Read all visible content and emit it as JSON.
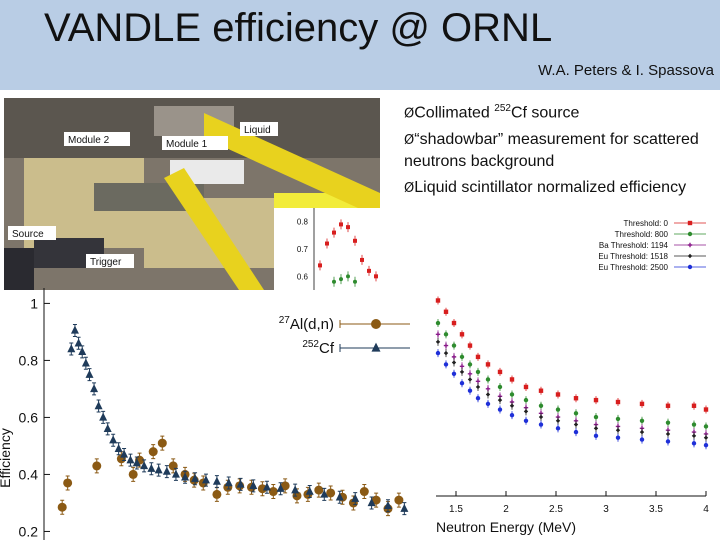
{
  "slide": {
    "title": "VANDLE efficiency @ ORNL",
    "authors": "W.A. Peters & I. Spassova",
    "bullets": [
      {
        "pre": "Collimated ",
        "sup": "252",
        "post": "Cf source"
      },
      {
        "pre": "“shadowbar” measurement for scattered neutrons background",
        "sup": "",
        "post": ""
      },
      {
        "pre": "Liquid scintillator normalized efficiency",
        "sup": "",
        "post": ""
      }
    ],
    "bullet_marker": "Ø"
  },
  "photo": {
    "labels": {
      "module2": "Module 2",
      "module1": "Module 1",
      "liquid": "Liquid",
      "source": "Source",
      "trigger": "Trigger"
    },
    "colors": {
      "tape": "#e8d21e",
      "block": "#f2ec3a",
      "brick": "#cbbd8c",
      "wall": "#7d756a",
      "metal": "#34343a"
    }
  },
  "chart_data": [
    {
      "type": "scatter",
      "ylabel": "Efficiency",
      "ylim": [
        0.17,
        1.04
      ],
      "xlim": [
        0,
        4
      ],
      "y_ticks": [
        "1",
        "0.8",
        "0.6",
        "0.4",
        "0.2"
      ],
      "legend_position": "top-right",
      "grid": false,
      "series": [
        {
          "name": "27Al(d,n)",
          "name_sup": "27",
          "name_main": "Al(d,n)",
          "color": "#8b5a14",
          "marker": "circle",
          "x": [
            0.2,
            0.26,
            0.58,
            0.85,
            0.98,
            1.05,
            1.2,
            1.3,
            1.42,
            1.55,
            1.65,
            1.75,
            1.9,
            2.02,
            2.15,
            2.28,
            2.4,
            2.52,
            2.65,
            2.78,
            2.9,
            3.02,
            3.15,
            3.28,
            3.4,
            3.52,
            3.65,
            3.78,
            3.9
          ],
          "y": [
            0.285,
            0.37,
            0.43,
            0.455,
            0.4,
            0.45,
            0.48,
            0.51,
            0.43,
            0.4,
            0.38,
            0.37,
            0.33,
            0.355,
            0.36,
            0.355,
            0.35,
            0.34,
            0.36,
            0.325,
            0.33,
            0.345,
            0.335,
            0.32,
            0.3,
            0.34,
            0.31,
            0.28,
            0.31
          ]
        },
        {
          "name": "252Cf",
          "name_sup": "252",
          "name_main": "Cf",
          "color": "#1f3b5a",
          "marker": "triangle",
          "x": [
            0.3,
            0.34,
            0.38,
            0.42,
            0.46,
            0.5,
            0.55,
            0.6,
            0.65,
            0.7,
            0.76,
            0.82,
            0.88,
            0.95,
            1.02,
            1.1,
            1.18,
            1.26,
            1.35,
            1.45,
            1.55,
            1.66,
            1.78,
            1.9,
            2.03,
            2.16,
            2.3,
            2.45,
            2.6,
            2.76,
            2.92,
            3.08,
            3.25,
            3.42,
            3.6,
            3.78,
            3.96
          ],
          "y": [
            0.84,
            0.905,
            0.86,
            0.83,
            0.79,
            0.75,
            0.7,
            0.64,
            0.6,
            0.56,
            0.52,
            0.49,
            0.47,
            0.45,
            0.44,
            0.43,
            0.42,
            0.415,
            0.41,
            0.4,
            0.39,
            0.385,
            0.38,
            0.375,
            0.37,
            0.365,
            0.36,
            0.355,
            0.35,
            0.345,
            0.34,
            0.33,
            0.32,
            0.315,
            0.3,
            0.29,
            0.28
          ]
        }
      ]
    },
    {
      "type": "scatter",
      "xlabel": "Neutron Energy (MeV)",
      "xlim": [
        1.3,
        4.0
      ],
      "ylim": [
        0.1,
        0.85
      ],
      "x_ticks": [
        "1.5",
        "2",
        "2.5",
        "3",
        "3.5",
        "4"
      ],
      "legend_position": "top-right",
      "series": [
        {
          "name": "Threshold: 0",
          "color": "#d81e1e",
          "marker": "square",
          "x": [
            1.32,
            1.4,
            1.48,
            1.56,
            1.64,
            1.72,
            1.82,
            1.94,
            2.06,
            2.2,
            2.35,
            2.52,
            2.7,
            2.9,
            3.12,
            3.36,
            3.62,
            3.88,
            4.0
          ],
          "y": [
            0.62,
            0.59,
            0.56,
            0.53,
            0.5,
            0.47,
            0.45,
            0.43,
            0.41,
            0.39,
            0.38,
            0.37,
            0.36,
            0.355,
            0.35,
            0.345,
            0.34,
            0.34,
            0.33
          ]
        },
        {
          "name": "Threshold: 800",
          "color": "#2e8b2e",
          "marker": "circle",
          "x": [
            1.32,
            1.4,
            1.48,
            1.56,
            1.64,
            1.72,
            1.82,
            1.94,
            2.06,
            2.2,
            2.35,
            2.52,
            2.7,
            2.9,
            3.12,
            3.36,
            3.62,
            3.88,
            4.0
          ],
          "y": [
            0.56,
            0.53,
            0.5,
            0.47,
            0.45,
            0.43,
            0.41,
            0.39,
            0.37,
            0.355,
            0.34,
            0.33,
            0.32,
            0.31,
            0.305,
            0.3,
            0.295,
            0.29,
            0.285
          ]
        },
        {
          "name": "Threshold: 1194",
          "name_pre": "Ba",
          "color": "#8a1a8a",
          "marker": "plus",
          "x": [
            1.32,
            1.4,
            1.48,
            1.56,
            1.64,
            1.72,
            1.82,
            1.94,
            2.06,
            2.2,
            2.35,
            2.52,
            2.7,
            2.9,
            3.12,
            3.36,
            3.62,
            3.88,
            4.0
          ],
          "y": [
            0.53,
            0.5,
            0.47,
            0.445,
            0.425,
            0.405,
            0.385,
            0.365,
            0.35,
            0.335,
            0.32,
            0.31,
            0.3,
            0.29,
            0.285,
            0.28,
            0.275,
            0.27,
            0.265
          ]
        },
        {
          "name": "Threshold: 1518",
          "name_pre": "Eu",
          "color": "#222222",
          "marker": "diamond",
          "x": [
            1.32,
            1.4,
            1.48,
            1.56,
            1.64,
            1.72,
            1.82,
            1.94,
            2.06,
            2.2,
            2.35,
            2.52,
            2.7,
            2.9,
            3.12,
            3.36,
            3.62,
            3.88,
            4.0
          ],
          "y": [
            0.51,
            0.48,
            0.455,
            0.43,
            0.41,
            0.39,
            0.37,
            0.355,
            0.34,
            0.325,
            0.31,
            0.3,
            0.29,
            0.28,
            0.275,
            0.27,
            0.265,
            0.26,
            0.255
          ]
        },
        {
          "name": "Threshold: 2500",
          "name_pre": "Eu",
          "color": "#1e2fd8",
          "marker": "circle",
          "x": [
            1.32,
            1.4,
            1.48,
            1.56,
            1.64,
            1.72,
            1.82,
            1.94,
            2.06,
            2.2,
            2.35,
            2.52,
            2.7,
            2.9,
            3.12,
            3.36,
            3.62,
            3.88,
            4.0
          ],
          "y": [
            0.48,
            0.45,
            0.425,
            0.4,
            0.38,
            0.36,
            0.345,
            0.33,
            0.315,
            0.3,
            0.29,
            0.28,
            0.27,
            0.26,
            0.255,
            0.25,
            0.245,
            0.24,
            0.235
          ]
        }
      ]
    },
    {
      "type": "scatter",
      "ylim": [
        0.55,
        0.85
      ],
      "y_ticks": [
        "0.8",
        "0.7",
        "0.6"
      ],
      "series": [
        {
          "color": "#d81e1e",
          "marker": "square",
          "x": [
            0,
            1,
            2,
            3,
            4,
            5,
            6,
            7,
            8
          ],
          "y": [
            0.64,
            0.72,
            0.76,
            0.79,
            0.78,
            0.73,
            0.66,
            0.62,
            0.6
          ]
        },
        {
          "color": "#2e8b2e",
          "marker": "circle",
          "x": [
            2,
            3,
            4,
            5
          ],
          "y": [
            0.58,
            0.59,
            0.6,
            0.58
          ]
        }
      ]
    }
  ]
}
